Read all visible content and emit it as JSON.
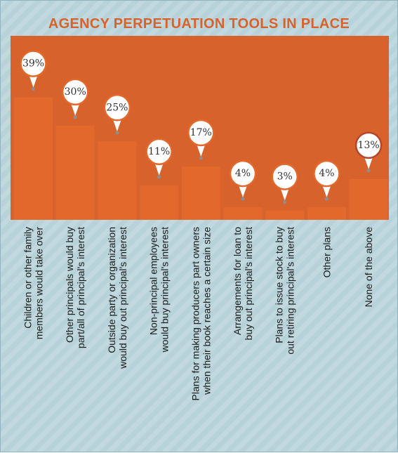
{
  "title": "AGENCY PERPETUATION TOOLS IN PLACE",
  "colors": {
    "bar": "#e2692b",
    "plot_background": "#d8622b",
    "title": "#d9622b",
    "pin_outline": "#e2692b",
    "pin_outline_highlight": "#b5462b",
    "background": "#b7d2d9"
  },
  "chart_data": {
    "type": "bar",
    "title": "AGENCY PERPETUATION TOOLS IN PLACE",
    "categories": [
      [
        "Children or other family",
        "members would take over"
      ],
      [
        "Other principals would buy",
        "part/all of principal's interest"
      ],
      [
        "Outside party or organization",
        "would buy out principal's interest"
      ],
      [
        "Non-principal employees",
        "would buy principal's interest"
      ],
      [
        "Plans for making producers part owners",
        "when their book reaches a certain size"
      ],
      [
        "Arrangements for loan to",
        "buy out principal's interest"
      ],
      [
        "Plans to issue stock to buy",
        "out retiring principal's interest"
      ],
      [
        "Other plans"
      ],
      [
        "None of the above"
      ]
    ],
    "values": [
      39,
      30,
      25,
      11,
      17,
      4,
      3,
      4,
      13
    ],
    "value_labels": [
      "39%",
      "30%",
      "25%",
      "11%",
      "17%",
      "4%",
      "3%",
      "4%",
      "13%"
    ],
    "highlight_index": 8,
    "xlabel": "",
    "ylabel": "",
    "grid": false,
    "legend": "none"
  }
}
